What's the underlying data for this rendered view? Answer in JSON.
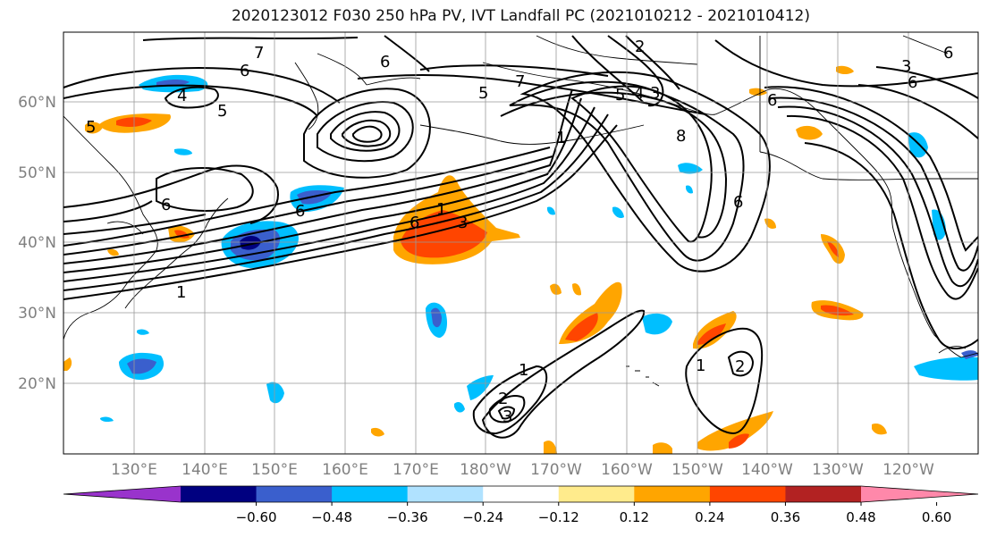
{
  "title": "2020123012 F030 250 hPa PV, IVT Landfall PC (2021010212 - 2021010412)",
  "map": {
    "lat_labels": [
      "60°N",
      "50°N",
      "40°N",
      "30°N",
      "20°N"
    ],
    "lon_labels": [
      "130°E",
      "140°E",
      "150°E",
      "160°E",
      "170°E",
      "180°W",
      "170°W",
      "160°W",
      "150°W",
      "140°W",
      "130°W",
      "120°W"
    ],
    "tick_label_color": "#808080",
    "ocean_color": "#ffffff",
    "grid_color": "#999999"
  },
  "contour_labels": [
    "7",
    "6",
    "6",
    "4",
    "5",
    "5",
    "6",
    "7",
    "2",
    "5",
    "4",
    "3",
    "3",
    "6",
    "6",
    "6",
    "5",
    "1",
    "8",
    "6",
    "6",
    "6",
    "1",
    "1",
    "1",
    "2",
    "3",
    "3",
    "2",
    "1"
  ],
  "colorbar": {
    "ticks": [
      "-0.60",
      "-0.48",
      "-0.36",
      "-0.24",
      "-0.12",
      "0.12",
      "0.24",
      "0.36",
      "0.48",
      "0.60"
    ],
    "colors": [
      "#9933cc",
      "#000080",
      "#3a5fcd",
      "#00bfff",
      "#b0e2ff",
      "#ffffff",
      "#ffeb8c",
      "#ffa500",
      "#ff4500",
      "#b22222",
      "#ff88aa"
    ],
    "levels": [
      -0.72,
      -0.6,
      -0.48,
      -0.36,
      -0.24,
      -0.12,
      0.12,
      0.24,
      0.36,
      0.48,
      0.6,
      0.72
    ]
  }
}
